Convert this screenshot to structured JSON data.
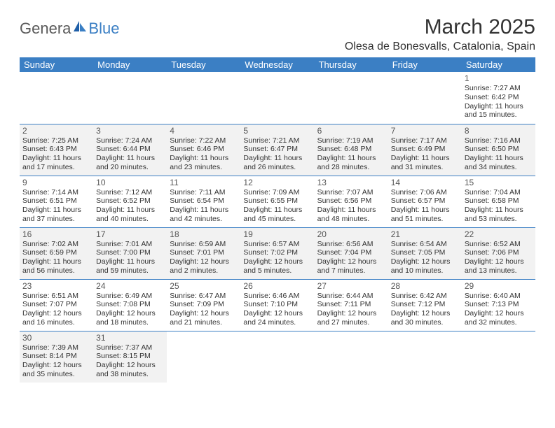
{
  "logo": {
    "text1": "Genera",
    "text2": "Blue"
  },
  "title": "March 2025",
  "location": "Olesa de Bonesvalls, Catalonia, Spain",
  "colors": {
    "header_bg": "#3b7fc4",
    "header_fg": "#ffffff",
    "shaded_bg": "#f2f2f2",
    "cell_border": "#3b7fc4",
    "logo_gray": "#5a5a5a",
    "logo_blue": "#3b7fc4"
  },
  "day_headers": [
    "Sunday",
    "Monday",
    "Tuesday",
    "Wednesday",
    "Thursday",
    "Friday",
    "Saturday"
  ],
  "weeks": [
    [
      {
        "empty": true
      },
      {
        "empty": true
      },
      {
        "empty": true
      },
      {
        "empty": true
      },
      {
        "empty": true
      },
      {
        "empty": true
      },
      {
        "num": "1",
        "sunrise": "Sunrise: 7:27 AM",
        "sunset": "Sunset: 6:42 PM",
        "day1": "Daylight: 11 hours",
        "day2": "and 15 minutes."
      }
    ],
    [
      {
        "num": "2",
        "shaded": true,
        "sunrise": "Sunrise: 7:25 AM",
        "sunset": "Sunset: 6:43 PM",
        "day1": "Daylight: 11 hours",
        "day2": "and 17 minutes."
      },
      {
        "num": "3",
        "shaded": true,
        "sunrise": "Sunrise: 7:24 AM",
        "sunset": "Sunset: 6:44 PM",
        "day1": "Daylight: 11 hours",
        "day2": "and 20 minutes."
      },
      {
        "num": "4",
        "shaded": true,
        "sunrise": "Sunrise: 7:22 AM",
        "sunset": "Sunset: 6:46 PM",
        "day1": "Daylight: 11 hours",
        "day2": "and 23 minutes."
      },
      {
        "num": "5",
        "shaded": true,
        "sunrise": "Sunrise: 7:21 AM",
        "sunset": "Sunset: 6:47 PM",
        "day1": "Daylight: 11 hours",
        "day2": "and 26 minutes."
      },
      {
        "num": "6",
        "shaded": true,
        "sunrise": "Sunrise: 7:19 AM",
        "sunset": "Sunset: 6:48 PM",
        "day1": "Daylight: 11 hours",
        "day2": "and 28 minutes."
      },
      {
        "num": "7",
        "shaded": true,
        "sunrise": "Sunrise: 7:17 AM",
        "sunset": "Sunset: 6:49 PM",
        "day1": "Daylight: 11 hours",
        "day2": "and 31 minutes."
      },
      {
        "num": "8",
        "shaded": true,
        "sunrise": "Sunrise: 7:16 AM",
        "sunset": "Sunset: 6:50 PM",
        "day1": "Daylight: 11 hours",
        "day2": "and 34 minutes."
      }
    ],
    [
      {
        "num": "9",
        "sunrise": "Sunrise: 7:14 AM",
        "sunset": "Sunset: 6:51 PM",
        "day1": "Daylight: 11 hours",
        "day2": "and 37 minutes."
      },
      {
        "num": "10",
        "sunrise": "Sunrise: 7:12 AM",
        "sunset": "Sunset: 6:52 PM",
        "day1": "Daylight: 11 hours",
        "day2": "and 40 minutes."
      },
      {
        "num": "11",
        "sunrise": "Sunrise: 7:11 AM",
        "sunset": "Sunset: 6:54 PM",
        "day1": "Daylight: 11 hours",
        "day2": "and 42 minutes."
      },
      {
        "num": "12",
        "sunrise": "Sunrise: 7:09 AM",
        "sunset": "Sunset: 6:55 PM",
        "day1": "Daylight: 11 hours",
        "day2": "and 45 minutes."
      },
      {
        "num": "13",
        "sunrise": "Sunrise: 7:07 AM",
        "sunset": "Sunset: 6:56 PM",
        "day1": "Daylight: 11 hours",
        "day2": "and 48 minutes."
      },
      {
        "num": "14",
        "sunrise": "Sunrise: 7:06 AM",
        "sunset": "Sunset: 6:57 PM",
        "day1": "Daylight: 11 hours",
        "day2": "and 51 minutes."
      },
      {
        "num": "15",
        "sunrise": "Sunrise: 7:04 AM",
        "sunset": "Sunset: 6:58 PM",
        "day1": "Daylight: 11 hours",
        "day2": "and 53 minutes."
      }
    ],
    [
      {
        "num": "16",
        "shaded": true,
        "sunrise": "Sunrise: 7:02 AM",
        "sunset": "Sunset: 6:59 PM",
        "day1": "Daylight: 11 hours",
        "day2": "and 56 minutes."
      },
      {
        "num": "17",
        "shaded": true,
        "sunrise": "Sunrise: 7:01 AM",
        "sunset": "Sunset: 7:00 PM",
        "day1": "Daylight: 11 hours",
        "day2": "and 59 minutes."
      },
      {
        "num": "18",
        "shaded": true,
        "sunrise": "Sunrise: 6:59 AM",
        "sunset": "Sunset: 7:01 PM",
        "day1": "Daylight: 12 hours",
        "day2": "and 2 minutes."
      },
      {
        "num": "19",
        "shaded": true,
        "sunrise": "Sunrise: 6:57 AM",
        "sunset": "Sunset: 7:02 PM",
        "day1": "Daylight: 12 hours",
        "day2": "and 5 minutes."
      },
      {
        "num": "20",
        "shaded": true,
        "sunrise": "Sunrise: 6:56 AM",
        "sunset": "Sunset: 7:04 PM",
        "day1": "Daylight: 12 hours",
        "day2": "and 7 minutes."
      },
      {
        "num": "21",
        "shaded": true,
        "sunrise": "Sunrise: 6:54 AM",
        "sunset": "Sunset: 7:05 PM",
        "day1": "Daylight: 12 hours",
        "day2": "and 10 minutes."
      },
      {
        "num": "22",
        "shaded": true,
        "sunrise": "Sunrise: 6:52 AM",
        "sunset": "Sunset: 7:06 PM",
        "day1": "Daylight: 12 hours",
        "day2": "and 13 minutes."
      }
    ],
    [
      {
        "num": "23",
        "sunrise": "Sunrise: 6:51 AM",
        "sunset": "Sunset: 7:07 PM",
        "day1": "Daylight: 12 hours",
        "day2": "and 16 minutes."
      },
      {
        "num": "24",
        "sunrise": "Sunrise: 6:49 AM",
        "sunset": "Sunset: 7:08 PM",
        "day1": "Daylight: 12 hours",
        "day2": "and 18 minutes."
      },
      {
        "num": "25",
        "sunrise": "Sunrise: 6:47 AM",
        "sunset": "Sunset: 7:09 PM",
        "day1": "Daylight: 12 hours",
        "day2": "and 21 minutes."
      },
      {
        "num": "26",
        "sunrise": "Sunrise: 6:46 AM",
        "sunset": "Sunset: 7:10 PM",
        "day1": "Daylight: 12 hours",
        "day2": "and 24 minutes."
      },
      {
        "num": "27",
        "sunrise": "Sunrise: 6:44 AM",
        "sunset": "Sunset: 7:11 PM",
        "day1": "Daylight: 12 hours",
        "day2": "and 27 minutes."
      },
      {
        "num": "28",
        "sunrise": "Sunrise: 6:42 AM",
        "sunset": "Sunset: 7:12 PM",
        "day1": "Daylight: 12 hours",
        "day2": "and 30 minutes."
      },
      {
        "num": "29",
        "sunrise": "Sunrise: 6:40 AM",
        "sunset": "Sunset: 7:13 PM",
        "day1": "Daylight: 12 hours",
        "day2": "and 32 minutes."
      }
    ],
    [
      {
        "num": "30",
        "shaded": true,
        "sunrise": "Sunrise: 7:39 AM",
        "sunset": "Sunset: 8:14 PM",
        "day1": "Daylight: 12 hours",
        "day2": "and 35 minutes."
      },
      {
        "num": "31",
        "shaded": true,
        "sunrise": "Sunrise: 7:37 AM",
        "sunset": "Sunset: 8:15 PM",
        "day1": "Daylight: 12 hours",
        "day2": "and 38 minutes."
      },
      {
        "empty": true
      },
      {
        "empty": true
      },
      {
        "empty": true
      },
      {
        "empty": true
      },
      {
        "empty": true
      }
    ]
  ]
}
